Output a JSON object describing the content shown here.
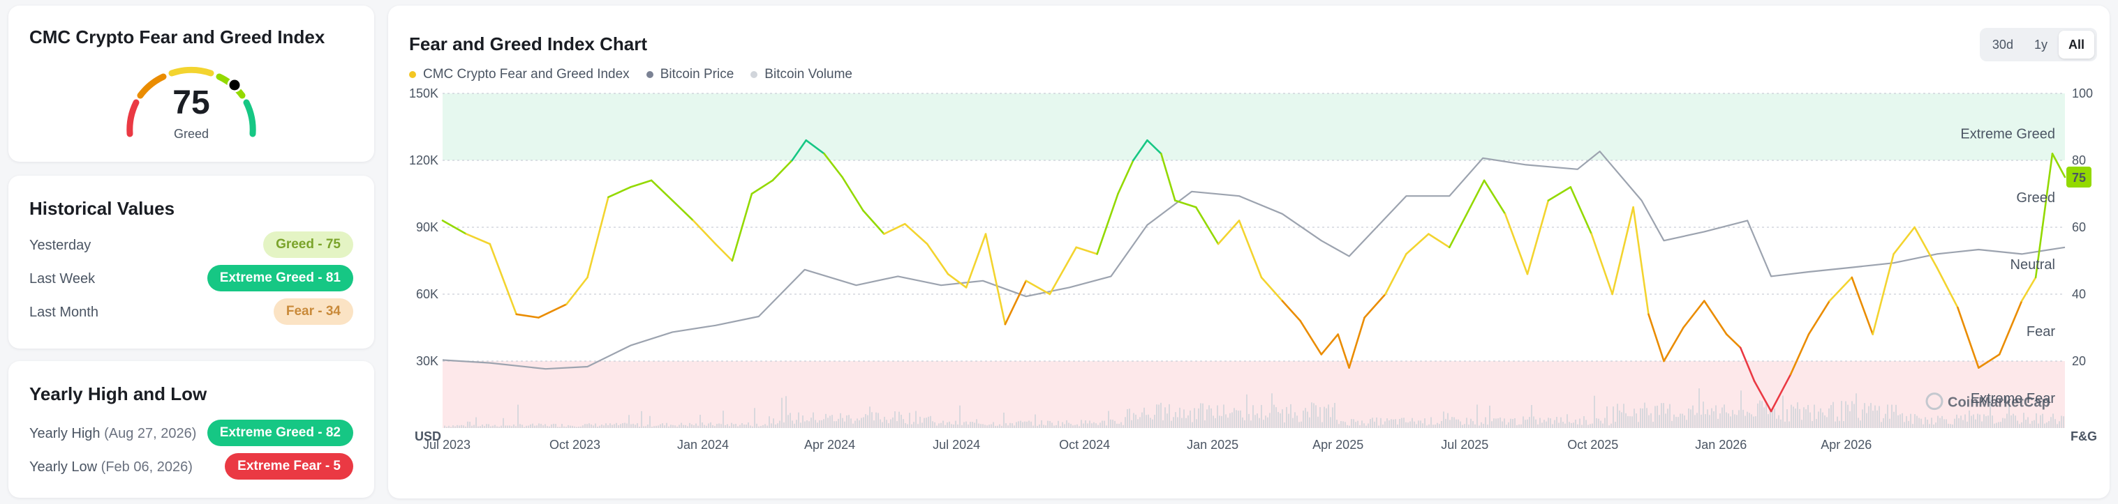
{
  "gauge": {
    "title": "CMC Crypto Fear and Greed Index",
    "value": "75",
    "label": "Greed",
    "segment_colors": [
      "#ea3943",
      "#ea8c00",
      "#f3d42f",
      "#93d900",
      "#16c784"
    ]
  },
  "historical": {
    "title": "Historical Values",
    "rows": [
      {
        "label": "Yesterday",
        "badge": "Greed - 75",
        "tone": "greed"
      },
      {
        "label": "Last Week",
        "badge": "Extreme Greed - 81",
        "tone": "xgreed"
      },
      {
        "label": "Last Month",
        "badge": "Fear - 34",
        "tone": "fear"
      }
    ]
  },
  "yearly": {
    "title": "Yearly High and Low",
    "high": {
      "label": "Yearly High",
      "date": "(Aug 27, 2026)",
      "badge": "Extreme Greed - 82"
    },
    "low": {
      "label": "Yearly Low",
      "date": "(Feb 06, 2026)",
      "badge": "Extreme Fear - 5"
    }
  },
  "chart": {
    "title": "Fear and Greed Index Chart",
    "ranges": [
      "30d",
      "1y",
      "All"
    ],
    "active_range": "All",
    "watermark": "CoinMarketCap",
    "current_tag": "75",
    "colors": {
      "extreme_fear": "#ea3943",
      "fear": "#ea8c00",
      "neutral": "#f3d42f",
      "greed": "#93d900",
      "extreme_greed": "#16c784",
      "btc_price": "#9ca3af",
      "volume": "#d1d5db",
      "zone_greed_bg": "#e6f8ef",
      "zone_fear_bg": "#fde8ea"
    }
  },
  "chart_data": {
    "type": "line",
    "title": "Fear and Greed Index Chart",
    "legend": [
      "CMC Crypto Fear and Greed Index",
      "Bitcoin Price",
      "Bitcoin Volume"
    ],
    "left_axis": {
      "unit": "USD",
      "ticks": [
        "150K",
        "120K",
        "90K",
        "60K",
        "30K"
      ],
      "range": [
        0,
        150000
      ]
    },
    "right_axis": {
      "unit": "F&G",
      "ticks": [
        "100",
        "80",
        "60",
        "40",
        "20"
      ],
      "range": [
        0,
        100
      ]
    },
    "x_ticks": [
      "Jul 2023",
      "Oct 2023",
      "Jan 2024",
      "Apr 2024",
      "Jul 2024",
      "Oct 2024",
      "Jan 2025",
      "Apr 2025",
      "Jul 2025",
      "Oct 2025",
      "Jan 2026",
      "Apr 2026"
    ],
    "zones": [
      {
        "name": "Extreme Greed",
        "from": 80,
        "to": 100
      },
      {
        "name": "Greed",
        "from": 60,
        "to": 80
      },
      {
        "name": "Neutral",
        "from": 40,
        "to": 60
      },
      {
        "name": "Fear",
        "from": 20,
        "to": 40
      },
      {
        "name": "Extreme Fear",
        "from": 0,
        "to": 20
      }
    ],
    "series": [
      {
        "name": "CMC Crypto Fear and Greed Index",
        "x": [
          "2023-06-28",
          "2023-07-15",
          "2023-08-01",
          "2023-08-20",
          "2023-09-05",
          "2023-09-25",
          "2023-10-10",
          "2023-10-25",
          "2023-11-10",
          "2023-11-25",
          "2023-12-10",
          "2023-12-25",
          "2024-01-10",
          "2024-01-22",
          "2024-02-05",
          "2024-02-20",
          "2024-03-05",
          "2024-03-15",
          "2024-03-28",
          "2024-04-10",
          "2024-04-25",
          "2024-05-10",
          "2024-05-25",
          "2024-06-10",
          "2024-06-25",
          "2024-07-08",
          "2024-07-22",
          "2024-08-05",
          "2024-08-20",
          "2024-09-06",
          "2024-09-25",
          "2024-10-10",
          "2024-10-25",
          "2024-11-05",
          "2024-11-15",
          "2024-11-25",
          "2024-12-05",
          "2024-12-20",
          "2025-01-05",
          "2025-01-20",
          "2025-02-05",
          "2025-02-20",
          "2025-03-05",
          "2025-03-20",
          "2025-04-01",
          "2025-04-09",
          "2025-04-20",
          "2025-05-05",
          "2025-05-20",
          "2025-06-05",
          "2025-06-20",
          "2025-07-05",
          "2025-07-15",
          "2025-07-30",
          "2025-08-15",
          "2025-08-30",
          "2025-09-15",
          "2025-09-30",
          "2025-10-15",
          "2025-10-30",
          "2025-11-10",
          "2025-11-21",
          "2025-12-05",
          "2025-12-20",
          "2026-01-05",
          "2026-01-15",
          "2026-01-25",
          "2026-02-06",
          "2026-02-20",
          "2026-03-05",
          "2026-03-20",
          "2026-04-05",
          "2026-04-20",
          "2026-05-05",
          "2026-05-20",
          "2026-06-05",
          "2026-06-20",
          "2026-07-05",
          "2026-07-20",
          "2026-08-05",
          "2026-08-15",
          "2026-08-27",
          "2026-09-05"
        ],
        "values": [
          62,
          58,
          55,
          34,
          33,
          37,
          45,
          69,
          72,
          74,
          68,
          62,
          55,
          50,
          70,
          74,
          80,
          86,
          82,
          75,
          65,
          58,
          61,
          55,
          46,
          42,
          58,
          31,
          44,
          40,
          54,
          52,
          70,
          80,
          86,
          82,
          68,
          66,
          55,
          62,
          45,
          38,
          32,
          22,
          28,
          18,
          33,
          40,
          52,
          58,
          54,
          66,
          74,
          64,
          46,
          68,
          72,
          58,
          40,
          66,
          34,
          20,
          30,
          38,
          28,
          24,
          14,
          5,
          16,
          28,
          38,
          45,
          28,
          52,
          60,
          48,
          36,
          18,
          22,
          38,
          45,
          82,
          75
        ]
      },
      {
        "name": "Bitcoin Price",
        "x": [
          "2023-06-28",
          "2023-08-01",
          "2023-09-10",
          "2023-10-10",
          "2023-11-10",
          "2023-12-10",
          "2024-01-10",
          "2024-02-10",
          "2024-03-14",
          "2024-04-20",
          "2024-05-20",
          "2024-06-20",
          "2024-07-20",
          "2024-08-20",
          "2024-09-20",
          "2024-10-20",
          "2024-11-15",
          "2024-12-17",
          "2025-01-20",
          "2025-02-20",
          "2025-03-20",
          "2025-04-09",
          "2025-05-20",
          "2025-06-20",
          "2025-07-14",
          "2025-08-14",
          "2025-09-20",
          "2025-10-06",
          "2025-11-05",
          "2025-11-21",
          "2025-12-20",
          "2026-01-20",
          "2026-02-06",
          "2026-03-05",
          "2026-04-05",
          "2026-05-05",
          "2026-06-05",
          "2026-07-05",
          "2026-08-05",
          "2026-09-05"
        ],
        "values": [
          30500,
          29200,
          26500,
          27500,
          37000,
          43000,
          46000,
          50000,
          71000,
          64000,
          68000,
          64000,
          66000,
          59000,
          63000,
          68000,
          91000,
          106000,
          104000,
          96000,
          84000,
          77000,
          104000,
          104000,
          121000,
          118000,
          116000,
          124000,
          102000,
          84000,
          88000,
          93000,
          68000,
          70000,
          72000,
          74000,
          78000,
          80000,
          78000,
          81000
        ]
      },
      {
        "name": "Bitcoin Volume",
        "values": []
      }
    ]
  }
}
